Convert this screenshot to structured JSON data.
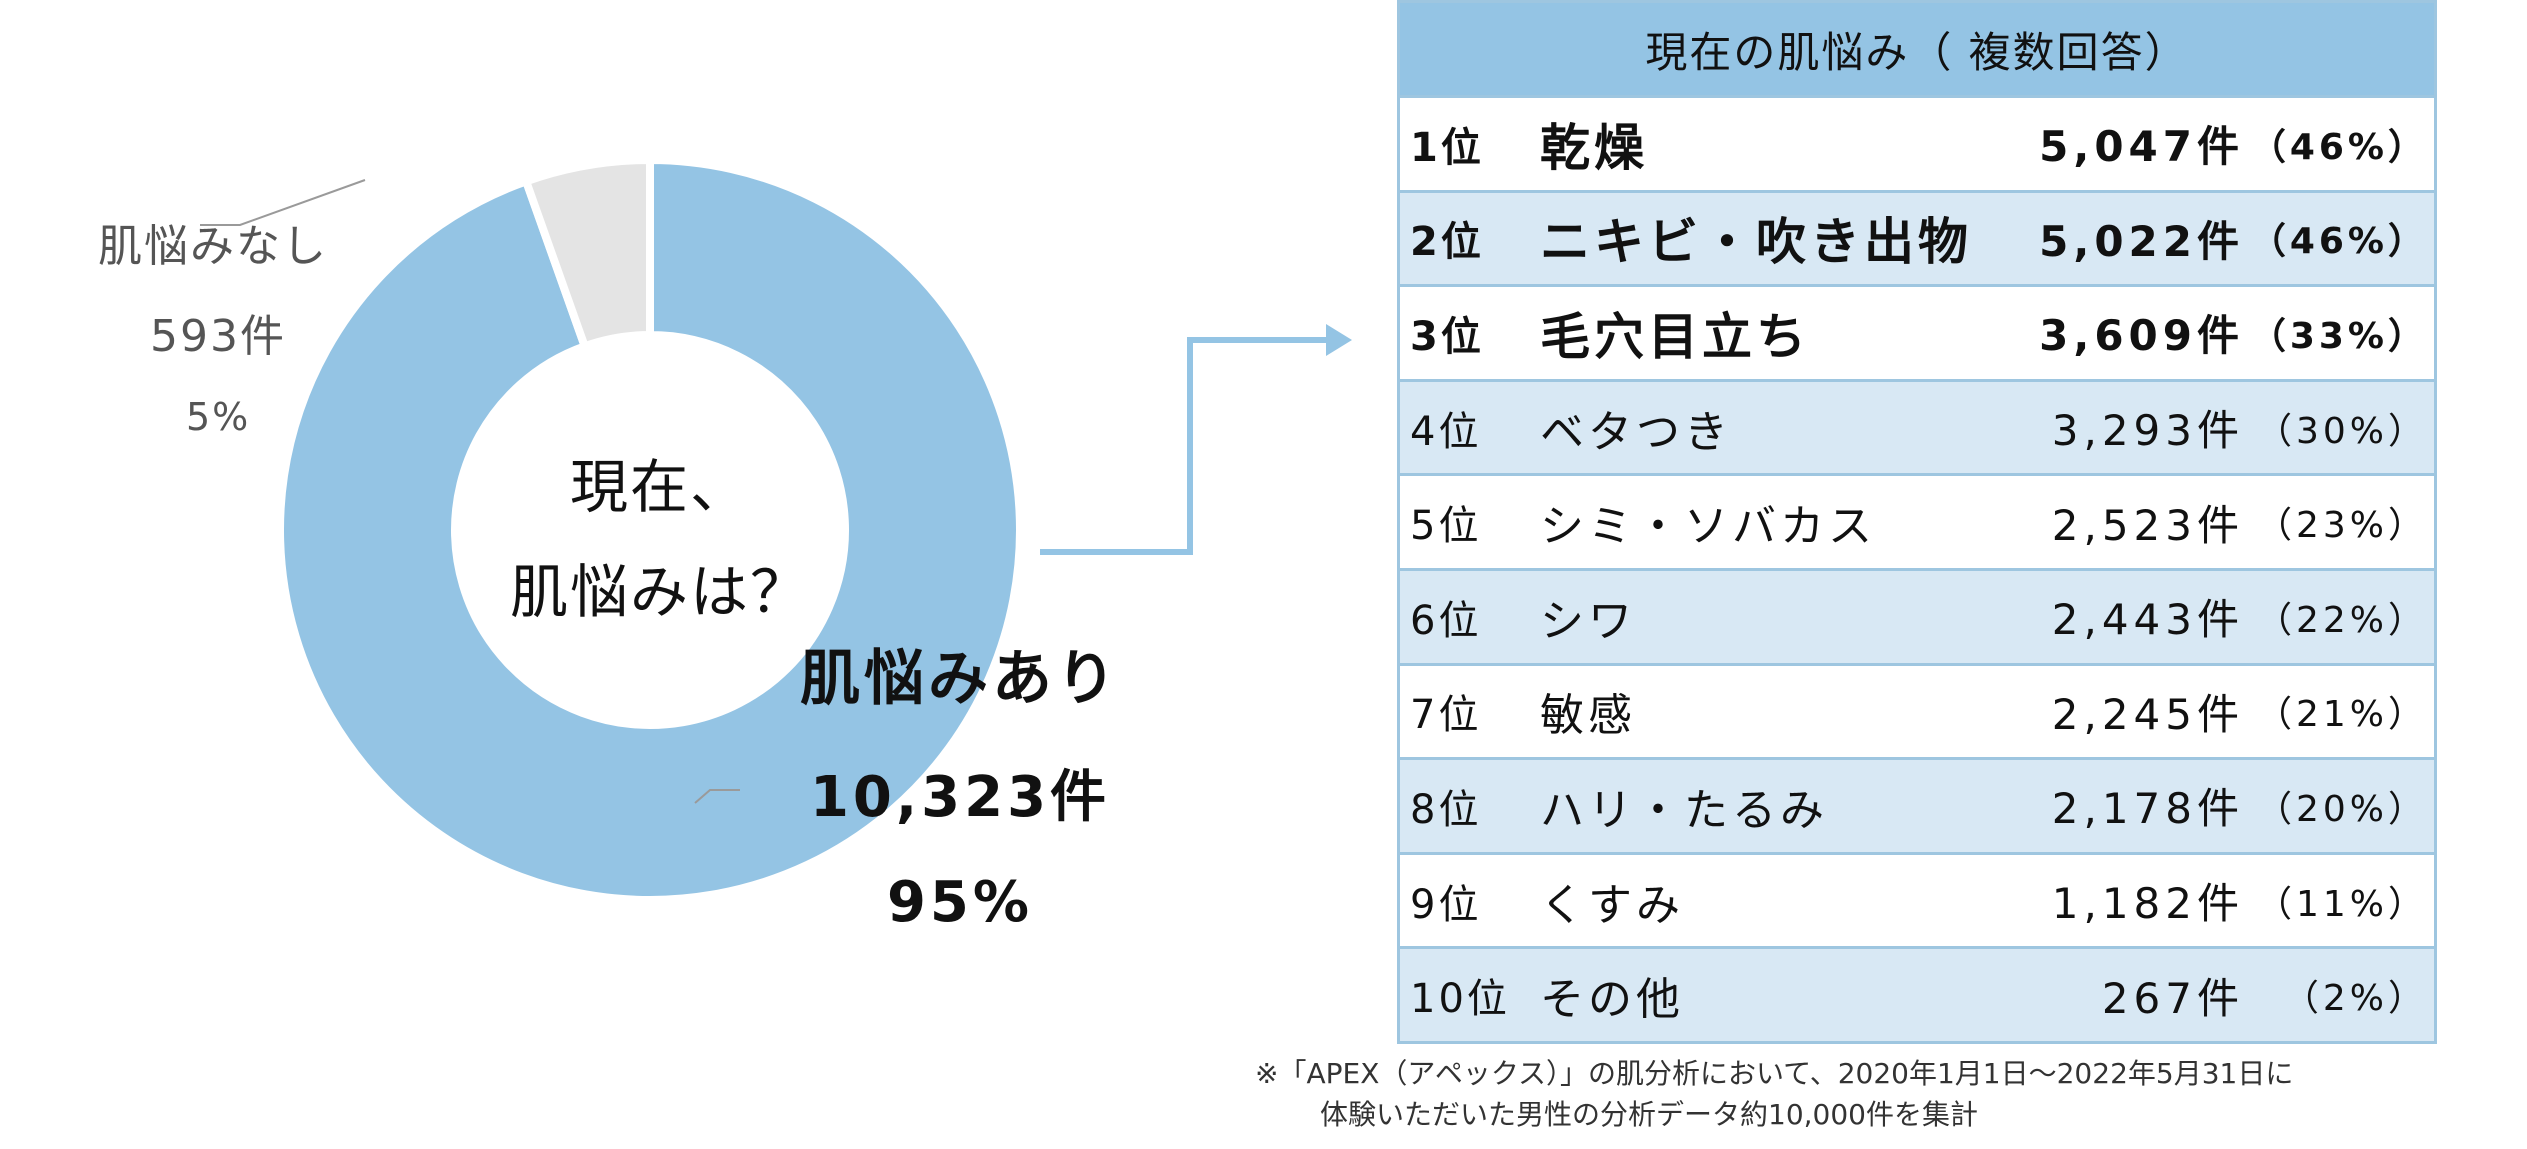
{
  "chart_data": [
    {
      "type": "pie",
      "title": "現在、肌悩みは？",
      "slices": [
        {
          "name": "肌悩みあり",
          "count_label": "10,323件",
          "percent_label": "95%",
          "value": 10323,
          "color": "#94c4e4"
        },
        {
          "name": "肌悩みなし",
          "count_label": "593件",
          "percent_label": "5%",
          "value": 593,
          "color": "#e4e4e4"
        }
      ]
    },
    {
      "type": "table",
      "title": "現在の肌悩み（ 複数回答）",
      "rows": [
        {
          "rank": "1位",
          "name": "乾燥",
          "count": "5,047件",
          "pct": "（46%）"
        },
        {
          "rank": "2位",
          "name": "ニキビ・吹き出物",
          "count": "5,022件",
          "pct": "（46%）"
        },
        {
          "rank": "3位",
          "name": "毛穴目立ち",
          "count": "3,609件",
          "pct": "（33%）"
        },
        {
          "rank": "4位",
          "name": "ベタつき",
          "count": "3,293件",
          "pct": "（30%）"
        },
        {
          "rank": "5位",
          "name": "シミ・ソバカス",
          "count": "2,523件",
          "pct": "（23%）"
        },
        {
          "rank": "6位",
          "name": "シワ",
          "count": "2,443件",
          "pct": "（22%）"
        },
        {
          "rank": "7位",
          "name": "敏感",
          "count": "2,245件",
          "pct": "（21%）"
        },
        {
          "rank": "8位",
          "name": "ハリ・たるみ",
          "count": "2,178件",
          "pct": "（20%）"
        },
        {
          "rank": "9位",
          "name": "くすみ",
          "count": "1,182件",
          "pct": "（11%）"
        },
        {
          "rank": "10位",
          "name": "その他",
          "count": "267件",
          "pct": "（2%）"
        }
      ]
    }
  ],
  "center_text": {
    "line1": "現在、",
    "line2": "肌悩みは？"
  },
  "note": {
    "line1": "※「APEX（アペックス）」の肌分析において、2020年1月1日〜2022年5月31日に",
    "line2": "体験いただいた男性の分析データ約10,000件を集計"
  },
  "colors": {
    "accent": "#94c4e4",
    "row_alt": "#d8e8f4",
    "border": "#9ec6e0",
    "none_slice": "#e4e4e4"
  }
}
